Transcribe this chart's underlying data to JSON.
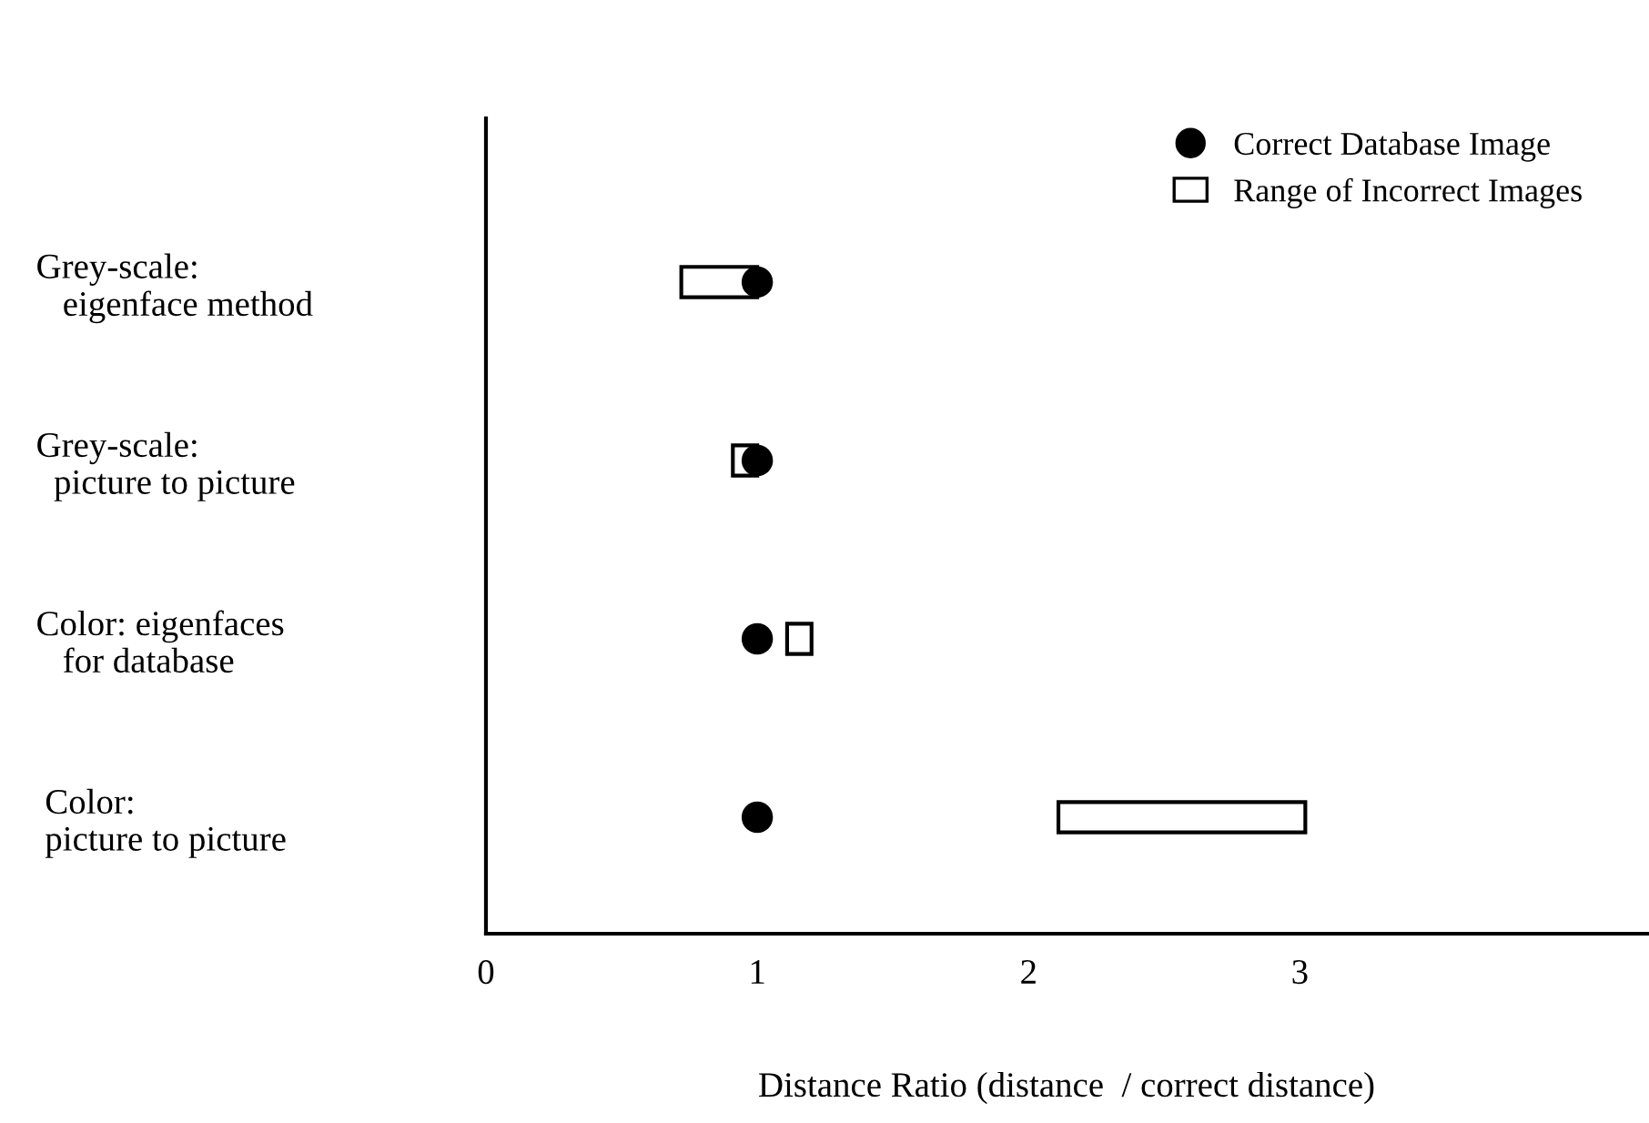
{
  "chart_data": {
    "type": "bar",
    "orientation": "horizontal",
    "xlabel": "Distance Ratio (distance  / correct distance)",
    "categories": [
      "Grey-scale:\n   eigenface method",
      "Grey-scale:\n  picture to picture",
      "Color: eigenfaces\n   for database",
      " Color:\n picture to picture"
    ],
    "series": [
      {
        "name": "Range of Incorrect Images",
        "color": "#ffffff",
        "base": [
          0.72,
          0.91,
          1.11,
          2.11
        ],
        "values": [
          0.28,
          0.09,
          0.09,
          0.91
        ]
      },
      {
        "name": "Correct Database Image",
        "type": "scatter",
        "color": "#000000",
        "marker": "circle",
        "values": [
          1,
          1,
          1,
          1
        ]
      }
    ],
    "xlim": [
      0,
      4.28
    ],
    "xticks": [
      0,
      1,
      2,
      3
    ],
    "grid": false,
    "legend": "top right"
  }
}
